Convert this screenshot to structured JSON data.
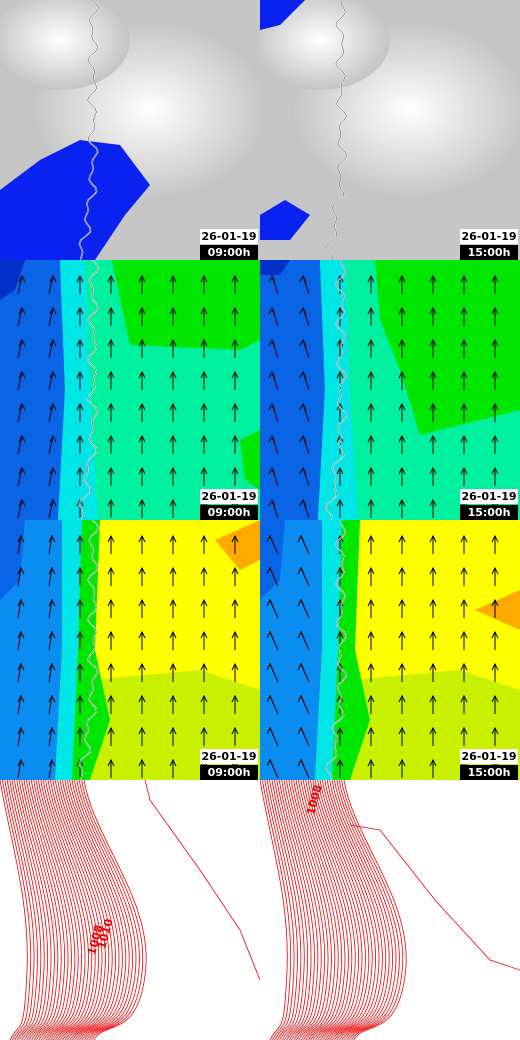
{
  "panels": [
    {
      "date": "26-01-19",
      "time": "09:00h"
    },
    {
      "date": "26-01-19",
      "time": "15:00h"
    },
    {
      "date": "26-01-19",
      "time": "09:00h"
    },
    {
      "date": "26-01-19",
      "time": "15:00h"
    },
    {
      "date": "26-01-19",
      "time": "09:00h"
    },
    {
      "date": "26-01-19",
      "time": "15:00h"
    },
    {
      "contour_labels": [
        "1008",
        "1010"
      ]
    },
    {
      "contour_labels": [
        "1008"
      ]
    }
  ]
}
